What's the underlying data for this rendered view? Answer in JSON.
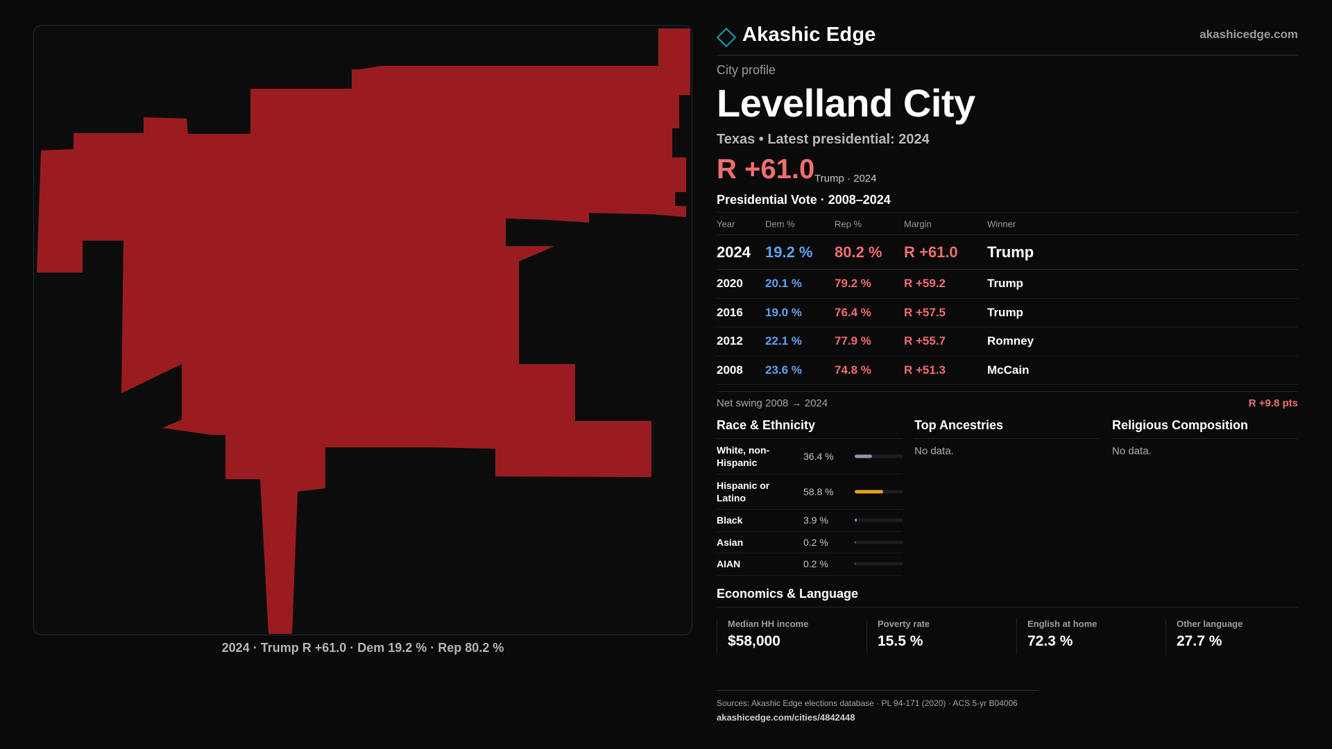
{
  "brand": {
    "name": "Akashic Edge",
    "url": "akashicedge.com"
  },
  "profile": {
    "label": "City profile",
    "city": "Levelland City",
    "subtitle": "Texas • Latest presidential: 2024",
    "headline_margin": "R +61.0",
    "headline_note": "Trump · 2024"
  },
  "map": {
    "fill_color": "#9b1c20",
    "caption": "2024 · Trump R +61.0 · Dem 19.2 % · Rep 80.2 %"
  },
  "vote_section": {
    "title": "Presidential Vote · 2008–2024",
    "headers": [
      "Year",
      "Dem %",
      "Rep %",
      "Margin",
      "Winner"
    ],
    "rows": [
      {
        "year": "2024",
        "dem": "19.2 %",
        "rep": "80.2 %",
        "margin": "R +61.0",
        "winner": "Trump"
      },
      {
        "year": "2020",
        "dem": "20.1 %",
        "rep": "79.2 %",
        "margin": "R +59.2",
        "winner": "Trump"
      },
      {
        "year": "2016",
        "dem": "19.0 %",
        "rep": "76.4 %",
        "margin": "R +57.5",
        "winner": "Trump"
      },
      {
        "year": "2012",
        "dem": "22.1 %",
        "rep": "77.9 %",
        "margin": "R +55.7",
        "winner": "Romney"
      },
      {
        "year": "2008",
        "dem": "23.6 %",
        "rep": "74.8 %",
        "margin": "R +51.3",
        "winner": "McCain"
      }
    ],
    "swing_label": "Net swing 2008 → 2024",
    "swing_value": "R +9.8 pts"
  },
  "race": {
    "title": "Race & Ethnicity",
    "rows": [
      {
        "name": "White, non-Hispanic",
        "pct": "36.4 %",
        "value": 36.4,
        "color": "#8f97a8"
      },
      {
        "name": "Hispanic or Latino",
        "pct": "58.8 %",
        "value": 58.8,
        "color": "#e8a21c"
      },
      {
        "name": "Black",
        "pct": "3.9 %",
        "value": 3.9,
        "color": "#8a7de0"
      },
      {
        "name": "Asian",
        "pct": "0.2 %",
        "value": 0.2,
        "color": "#4fb7c4"
      },
      {
        "name": "AIAN",
        "pct": "0.2 %",
        "value": 0.2,
        "color": "#c47a4f"
      }
    ]
  },
  "ancestries": {
    "title": "Top Ancestries",
    "empty": "No data."
  },
  "religion": {
    "title": "Religious Composition",
    "empty": "No data."
  },
  "economics": {
    "title": "Economics & Language",
    "cards": [
      {
        "label": "Median HH income",
        "value": "$58,000"
      },
      {
        "label": "Poverty rate",
        "value": "15.5 %"
      },
      {
        "label": "English at home",
        "value": "72.3 %"
      },
      {
        "label": "Other language",
        "value": "27.7 %"
      }
    ]
  },
  "sources": {
    "line": "Sources: Akashic Edge elections database · PL 94-171 (2020) · ACS 5-yr B04006",
    "url": "akashicedge.com/cities/4842448"
  },
  "colors": {
    "accent": "#1aa1b0",
    "dem": "#5fa2f2",
    "rep": "#f06e6e",
    "background": "#0a0a0b"
  }
}
